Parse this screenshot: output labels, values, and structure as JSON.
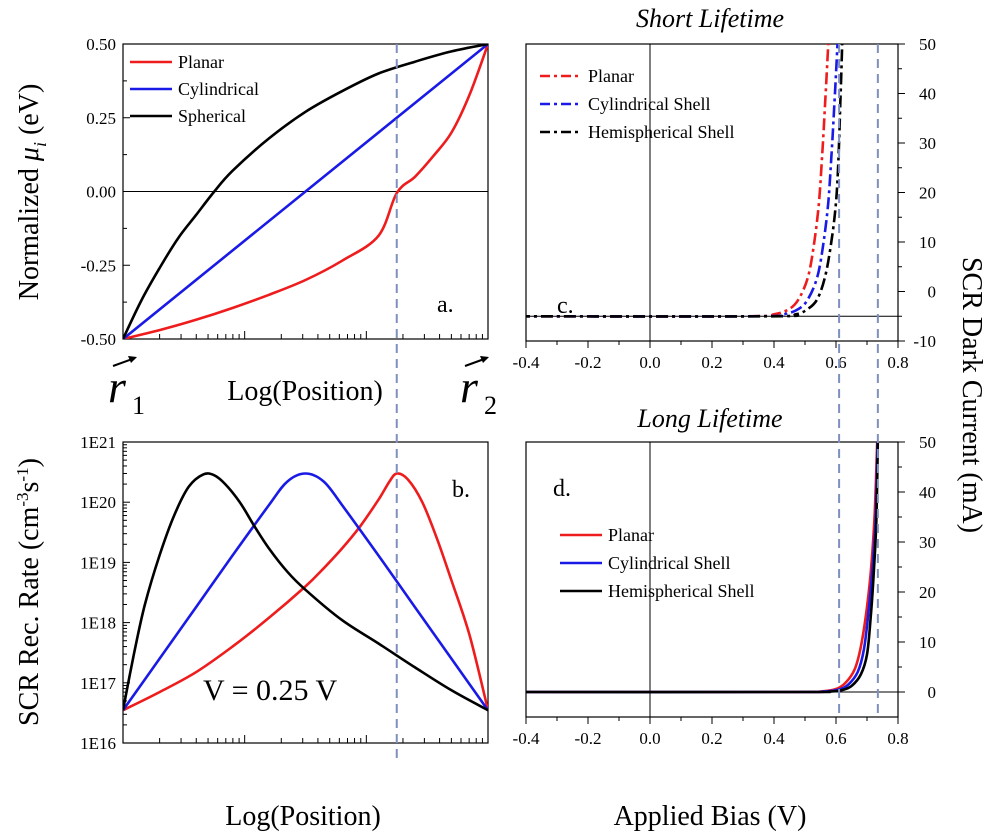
{
  "figure": {
    "right_axis_label": "SCR Dark Current (mA)",
    "r1_label": "r",
    "r1_sub": "1",
    "r2_label": "r",
    "r2_sub": "2"
  },
  "colors": {
    "planar": "#ee1c1c",
    "cylindrical": "#1a1ae6",
    "spherical": "#000000",
    "dashed": "#7f8fbf"
  },
  "chart_data": [
    {
      "id": "a",
      "type": "line",
      "panel_label": "a.",
      "title": "",
      "xlabel": "Log(Position)",
      "ylabel_pre": "Normalized ",
      "ylabel_mu": "μ",
      "ylabel_sub": "i",
      "ylabel_post": " (eV)",
      "xlim": [
        0,
        1
      ],
      "ylim": [
        -0.5,
        0.5
      ],
      "yticks": [
        -0.5,
        -0.25,
        0,
        0.25,
        0.5
      ],
      "ytick_labels": [
        "-0.50",
        "-0.25",
        "0.00",
        "0.25",
        "0.50"
      ],
      "legend": "top-left",
      "reference_line_y": 0,
      "vline_x": 0.75,
      "series": [
        {
          "name": "Planar",
          "color": "#ee1c1c",
          "x": [
            0,
            0.1,
            0.2,
            0.3,
            0.4,
            0.5,
            0.6,
            0.7,
            0.75,
            0.8,
            0.85,
            0.9,
            0.95,
            1.0
          ],
          "y": [
            -0.5,
            -0.47,
            -0.435,
            -0.395,
            -0.35,
            -0.3,
            -0.235,
            -0.15,
            -0.005,
            0.05,
            0.12,
            0.2,
            0.33,
            0.5
          ]
        },
        {
          "name": "Cylindrical",
          "color": "#1a1ae6",
          "x": [
            0,
            1
          ],
          "y": [
            -0.5,
            0.5
          ]
        },
        {
          "name": "Spherical",
          "color": "#000000",
          "x": [
            0,
            0.05,
            0.1,
            0.15,
            0.2,
            0.25,
            0.3,
            0.4,
            0.5,
            0.6,
            0.7,
            0.8,
            0.9,
            1.0
          ],
          "y": [
            -0.5,
            -0.37,
            -0.26,
            -0.16,
            -0.08,
            0,
            0.07,
            0.18,
            0.27,
            0.34,
            0.4,
            0.44,
            0.475,
            0.5
          ]
        }
      ]
    },
    {
      "id": "b",
      "type": "line",
      "panel_label": "b.",
      "title": "",
      "xlabel": "Log(Position)",
      "ylabel_pre": "SCR Rec. Rate (cm",
      "ylabel_sup1": "-3",
      "ylabel_mid": "s",
      "ylabel_sup2": "-1",
      "ylabel_post": ")",
      "annotation": "V = 0.25 V",
      "yscale": "log",
      "xlim": [
        0,
        1
      ],
      "ylim": [
        1e+16,
        1e+21
      ],
      "yticks": [
        1e+16,
        1e+17,
        1e+18,
        1e+19,
        1e+20,
        1e+21
      ],
      "ytick_labels": [
        "1E16",
        "1E17",
        "1E18",
        "1E19",
        "1E20",
        "1E21"
      ],
      "vline_x": 0.75,
      "series": [
        {
          "name": "Planar",
          "color": "#ee1c1c",
          "x": [
            0,
            0.1,
            0.2,
            0.3,
            0.4,
            0.5,
            0.55,
            0.6,
            0.65,
            0.7,
            0.73,
            0.75,
            0.78,
            0.82,
            0.86,
            0.9,
            0.95,
            1.0
          ],
          "y": [
            3.5e+16,
            7e+16,
            1.5e+17,
            4e+17,
            1.2e+18,
            4e+18,
            8e+18,
            1.7e+19,
            4e+19,
            1.1e+20,
            2.2e+20,
            3e+20,
            2.4e+20,
            1e+20,
            2.5e+19,
            5e+18,
            6e+17,
            3.5e+16
          ]
        },
        {
          "name": "Cylindrical",
          "color": "#1a1ae6",
          "x": [
            0,
            0.1,
            0.2,
            0.3,
            0.4,
            0.45,
            0.5,
            0.55,
            0.6,
            0.7,
            0.8,
            0.9,
            1.0
          ],
          "y": [
            3.5e+16,
            2.5e+17,
            1.8e+18,
            1.3e+19,
            9e+19,
            2.2e+20,
            3e+20,
            2.2e+20,
            9e+19,
            1.3e+19,
            1.8e+18,
            2.5e+17,
            3.5e+16
          ]
        },
        {
          "name": "Spherical",
          "color": "#000000",
          "x": [
            0,
            0.03,
            0.06,
            0.1,
            0.14,
            0.18,
            0.22,
            0.25,
            0.28,
            0.32,
            0.36,
            0.4,
            0.45,
            0.5,
            0.6,
            0.7,
            0.8,
            0.9,
            1.0
          ],
          "y": [
            3.5e+16,
            3e+17,
            2e+18,
            1.3e+19,
            6e+19,
            1.8e+20,
            2.9e+20,
            2.8e+20,
            2e+20,
            1e+20,
            4e+19,
            1.7e+19,
            7e+18,
            3.5e+18,
            1.1e+18,
            4.5e+17,
            1.8e+17,
            7.5e+16,
            3.5e+16
          ]
        }
      ]
    },
    {
      "id": "c",
      "type": "line",
      "panel_label": "c.",
      "title": "Short Lifetime",
      "xlabel": "",
      "ylabel": "",
      "xlim": [
        -0.4,
        0.8
      ],
      "ylim": [
        -10,
        50
      ],
      "xticks": [
        -0.4,
        -0.2,
        0,
        0.2,
        0.4,
        0.6,
        0.8
      ],
      "xtick_labels": [
        "-0.4",
        "-0.2",
        "0.0",
        "0.2",
        "0.4",
        "0.6",
        "0.8"
      ],
      "yticks": [
        -10,
        0,
        10,
        20,
        30,
        40,
        50
      ],
      "ytick_labels": [
        "-10",
        "0",
        "10",
        "20",
        "30",
        "40",
        "50"
      ],
      "legend": "top-left",
      "reference_line_y": -5,
      "vlines_x": [
        0.61,
        0.735
      ],
      "series": [
        {
          "name": "Planar",
          "color": "#ee1c1c",
          "dash": "dashdot",
          "x": [
            -0.5,
            0.3,
            0.4,
            0.45,
            0.48,
            0.51,
            0.53,
            0.545,
            0.555,
            0.565,
            0.575
          ],
          "y": [
            -5,
            -5,
            -4.6,
            -3.5,
            -1.5,
            3,
            10,
            18,
            27,
            38,
            50
          ]
        },
        {
          "name": "Cylindrical Shell",
          "color": "#1a1ae6",
          "dash": "dashdot",
          "x": [
            -0.5,
            0.33,
            0.43,
            0.48,
            0.51,
            0.54,
            0.56,
            0.575,
            0.585,
            0.595,
            0.605
          ],
          "y": [
            -5,
            -5,
            -4.6,
            -3.5,
            -1.5,
            3,
            10,
            18,
            27,
            38,
            50
          ]
        },
        {
          "name": "Hemispherical Shell",
          "color": "#000000",
          "dash": "dashdot",
          "x": [
            -0.5,
            0.38,
            0.47,
            0.51,
            0.54,
            0.565,
            0.585,
            0.6,
            0.608,
            0.614,
            0.62
          ],
          "y": [
            -5,
            -5,
            -4.6,
            -3.5,
            -1.5,
            3,
            10,
            18,
            27,
            38,
            50
          ]
        }
      ]
    },
    {
      "id": "d",
      "type": "line",
      "panel_label": "d.",
      "title": "Long Lifetime",
      "xlabel": "Applied Bias (V)",
      "ylabel": "",
      "xlim": [
        -0.4,
        0.8
      ],
      "ylim": [
        -5,
        50
      ],
      "xticks": [
        -0.4,
        -0.2,
        0,
        0.2,
        0.4,
        0.6,
        0.8
      ],
      "xtick_labels": [
        "-0.4",
        "-0.2",
        "0.0",
        "0.2",
        "0.4",
        "0.6",
        "0.8"
      ],
      "yticks": [
        0,
        10,
        20,
        30,
        40,
        50
      ],
      "ytick_labels": [
        "0",
        "10",
        "20",
        "30",
        "40",
        "50"
      ],
      "legend": "center-left",
      "reference_line_y": 0,
      "vlines_x": [
        0.61,
        0.735
      ],
      "series": [
        {
          "name": "Planar",
          "color": "#ee1c1c",
          "dash": "solid",
          "x": [
            -0.4,
            0.45,
            0.55,
            0.6,
            0.63,
            0.66,
            0.68,
            0.7,
            0.715,
            0.725,
            0.733
          ],
          "y": [
            0,
            0,
            0.1,
            0.6,
            1.8,
            4.5,
            9,
            17,
            26,
            36,
            50
          ]
        },
        {
          "name": "Cylindrical Shell",
          "color": "#1a1ae6",
          "dash": "solid",
          "x": [
            -0.4,
            0.46,
            0.56,
            0.61,
            0.64,
            0.67,
            0.69,
            0.705,
            0.718,
            0.728,
            0.734
          ],
          "y": [
            0,
            0,
            0.1,
            0.5,
            1.5,
            4,
            8.5,
            16,
            25,
            35,
            50
          ]
        },
        {
          "name": "Hemispherical Shell",
          "color": "#000000",
          "dash": "solid",
          "x": [
            -0.4,
            0.48,
            0.58,
            0.62,
            0.65,
            0.68,
            0.7,
            0.712,
            0.722,
            0.73,
            0.735
          ],
          "y": [
            0,
            0,
            0.1,
            0.4,
            1.2,
            3.5,
            7.5,
            15,
            24,
            34,
            50
          ]
        }
      ]
    }
  ]
}
